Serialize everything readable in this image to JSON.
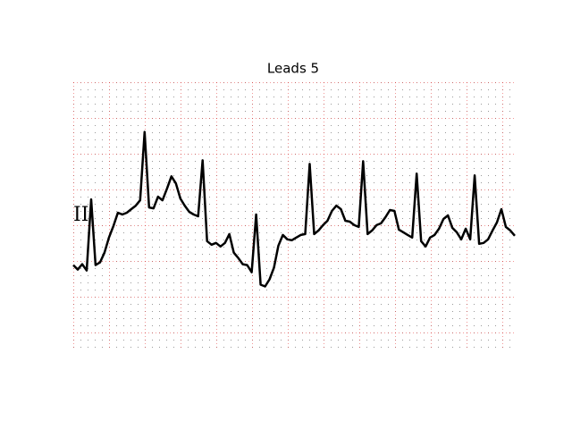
{
  "chart_data": {
    "type": "line",
    "title": "Leads 5",
    "series": [
      {
        "name": "II",
        "color": "#000000",
        "values": [
          -0.56,
          -0.61,
          -0.55,
          -0.62,
          0.18,
          -0.56,
          -0.53,
          -0.42,
          -0.25,
          -0.12,
          0.03,
          0.01,
          0.03,
          0.07,
          0.11,
          0.17,
          0.94,
          0.09,
          0.08,
          0.21,
          0.17,
          0.3,
          0.44,
          0.36,
          0.19,
          0.11,
          0.04,
          0.01,
          -0.01,
          0.62,
          -0.29,
          -0.33,
          -0.31,
          -0.35,
          -0.31,
          -0.21,
          -0.42,
          -0.48,
          -0.55,
          -0.56,
          -0.64,
          0.01,
          -0.78,
          -0.8,
          -0.72,
          -0.59,
          -0.34,
          -0.22,
          -0.27,
          -0.28,
          -0.25,
          -0.22,
          -0.21,
          0.58,
          -0.21,
          -0.17,
          -0.11,
          -0.06,
          0.05,
          0.11,
          0.07,
          -0.06,
          -0.07,
          -0.11,
          -0.13,
          0.61,
          -0.21,
          -0.17,
          -0.11,
          -0.09,
          -0.02,
          0.06,
          0.05,
          -0.16,
          -0.19,
          -0.22,
          -0.25,
          0.47,
          -0.29,
          -0.35,
          -0.25,
          -0.22,
          -0.15,
          -0.04,
          0.0,
          -0.14,
          -0.19,
          -0.27,
          -0.15,
          -0.27,
          0.45,
          -0.32,
          -0.31,
          -0.27,
          -0.17,
          -0.08,
          0.07,
          -0.13,
          -0.17,
          -0.23
        ]
      }
    ],
    "ylim": [
      -1.5,
      1.5
    ]
  }
}
